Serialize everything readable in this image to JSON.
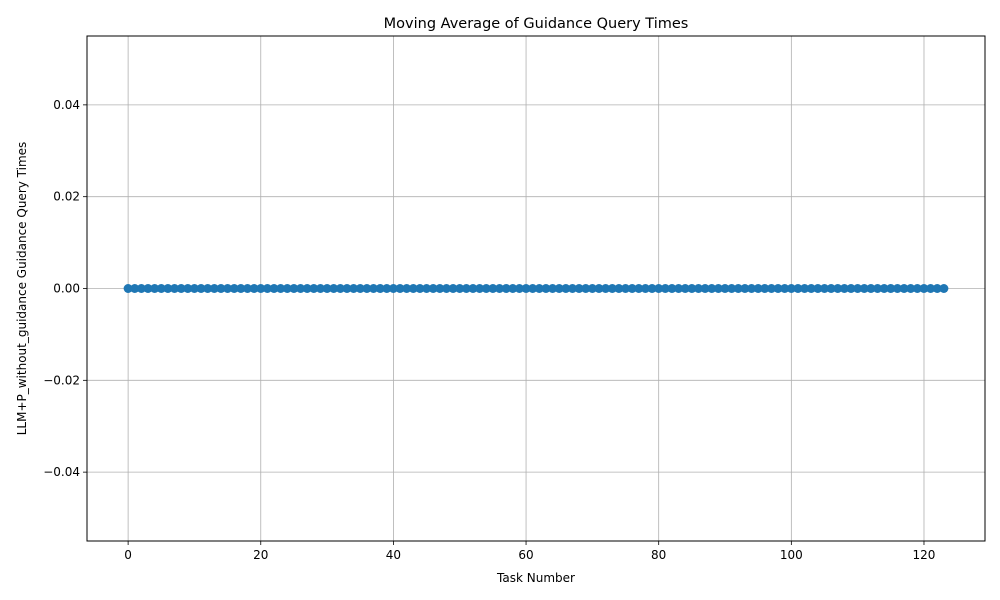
{
  "chart_data": {
    "type": "scatter",
    "title": "Moving Average of Guidance Query Times",
    "xlabel": "Task Number",
    "ylabel": "LLM+P_without_guidance Guidance Query Times",
    "xlim": [
      -6.2,
      129.2
    ],
    "ylim": [
      -0.055,
      0.055
    ],
    "xticks": [
      0,
      20,
      40,
      60,
      80,
      100,
      120
    ],
    "xtick_labels": [
      "0",
      "20",
      "40",
      "60",
      "80",
      "100",
      "120"
    ],
    "yticks": [
      -0.04,
      -0.02,
      0.0,
      0.02,
      0.04
    ],
    "ytick_labels": [
      "−0.04",
      "−0.02",
      "0.00",
      "0.02",
      "0.04"
    ],
    "grid": true,
    "series": [
      {
        "color": "#1f77b4",
        "marker": "circle",
        "line": true,
        "x_start": 0,
        "x_end": 123,
        "x_step": 1,
        "y_constant": 0.0
      }
    ]
  }
}
